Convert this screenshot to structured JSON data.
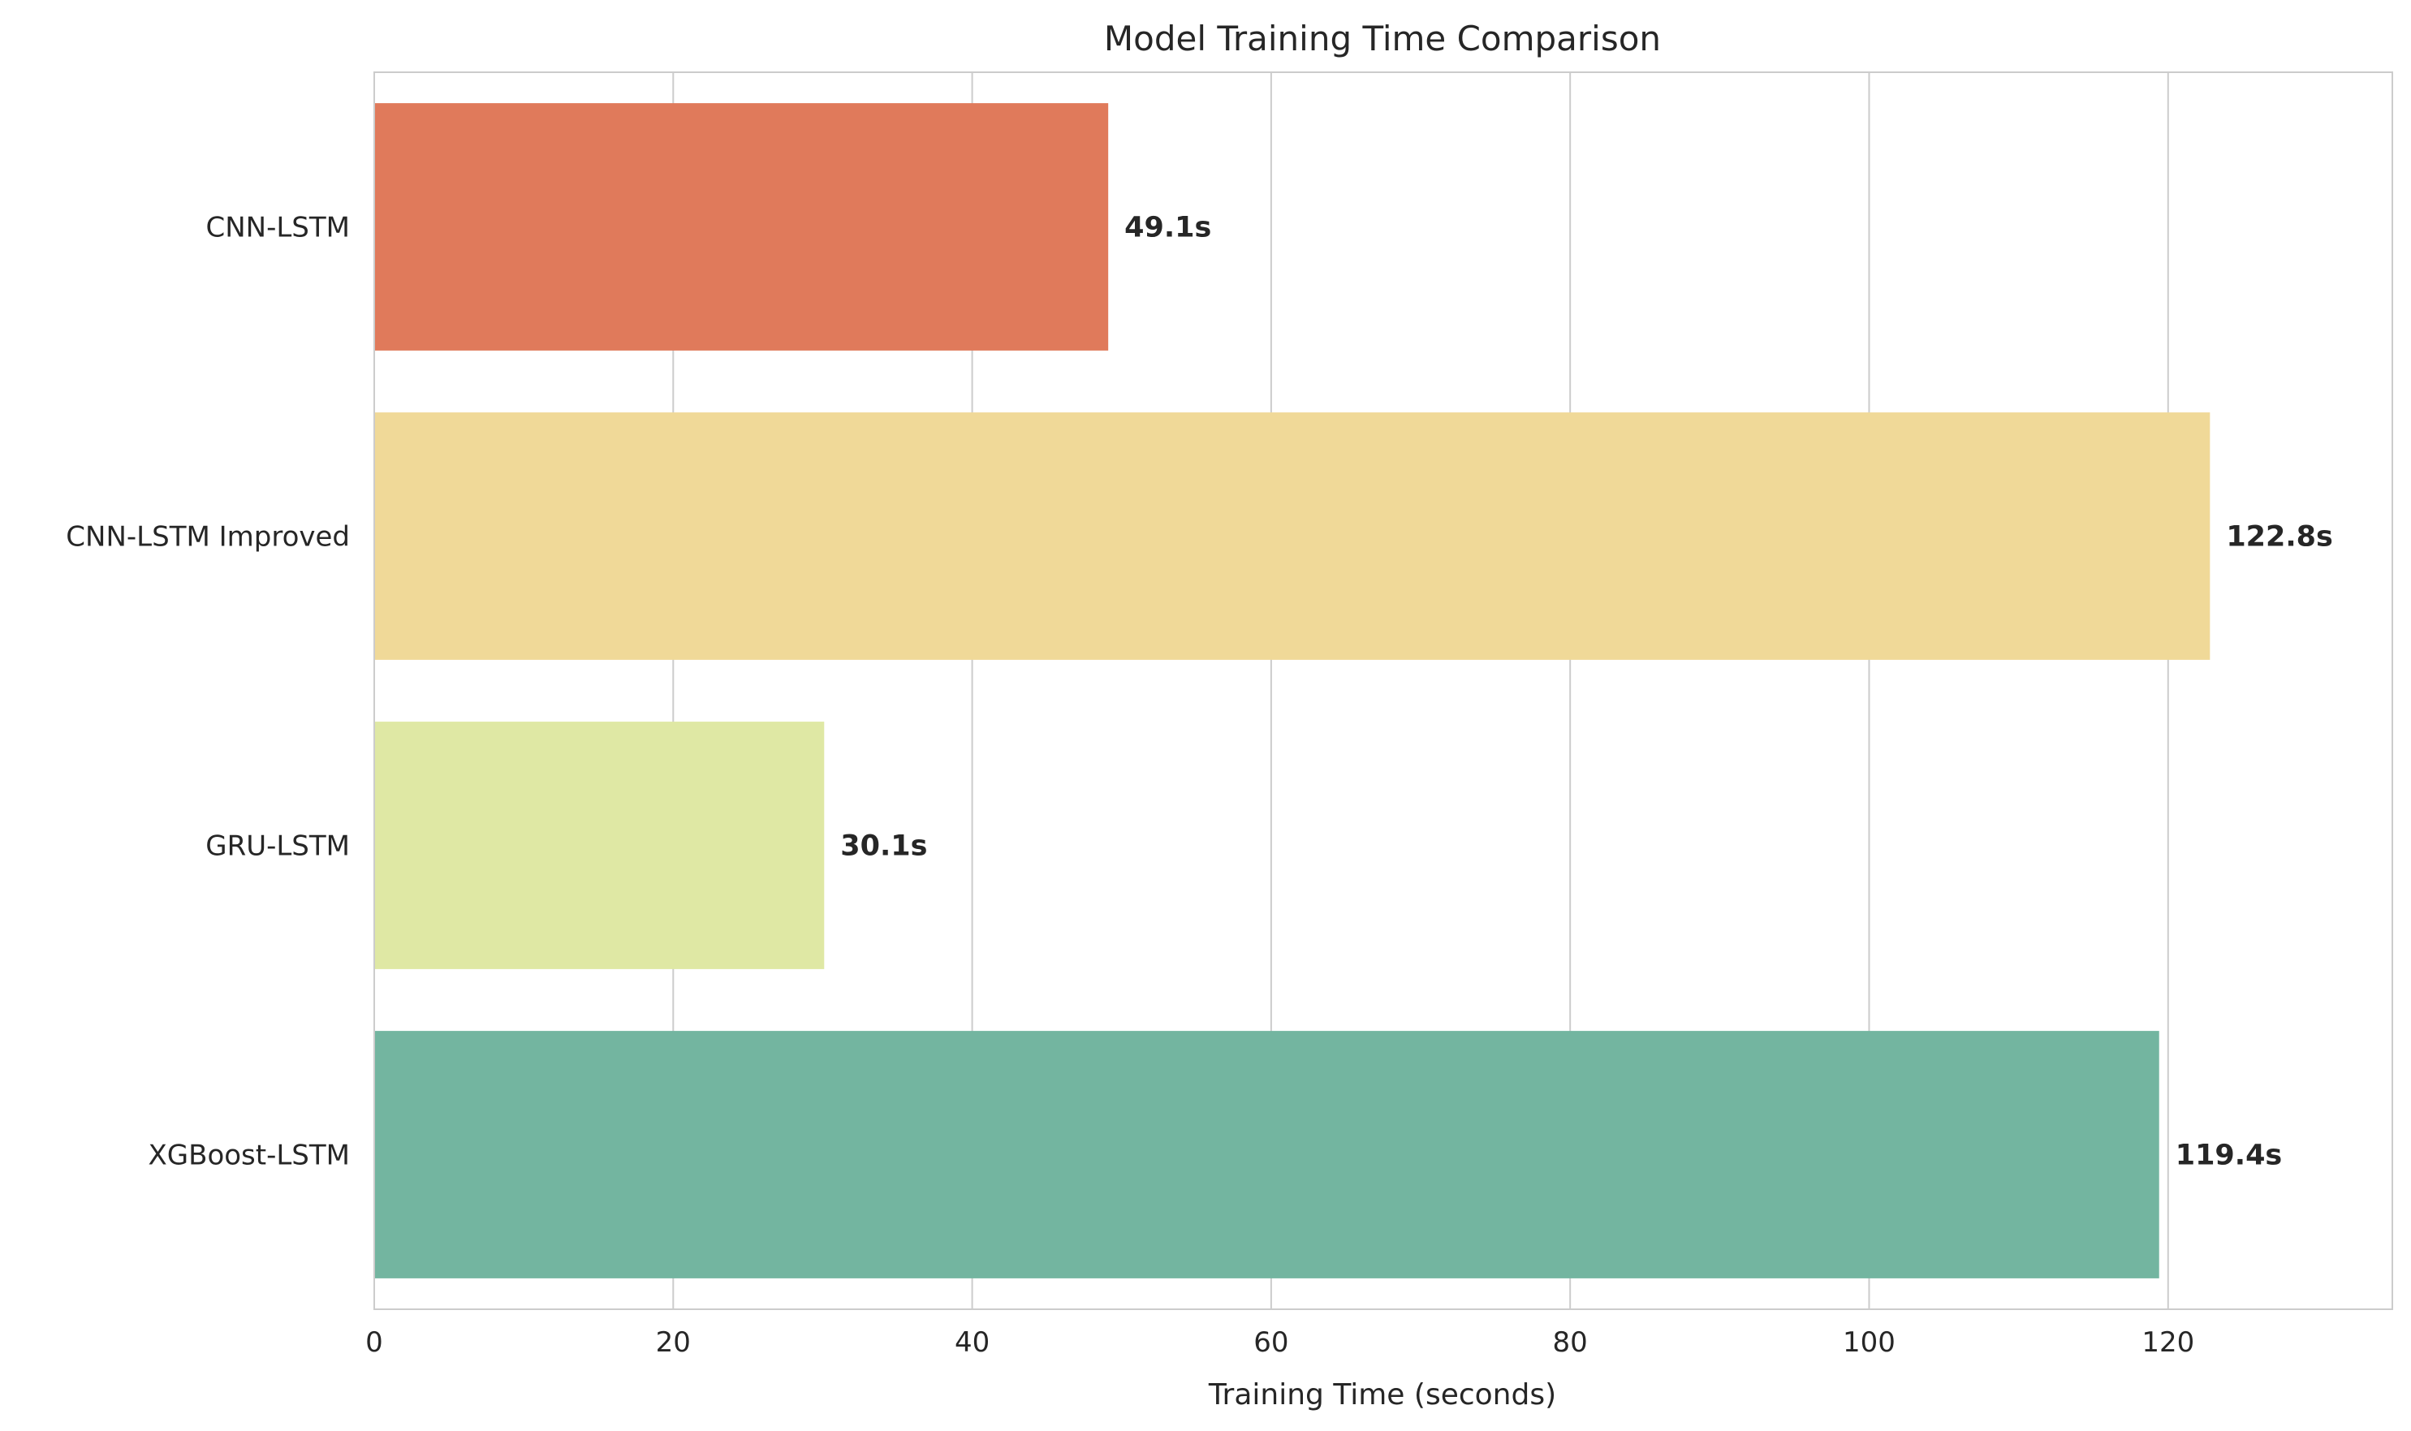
{
  "chart_data": {
    "type": "bar",
    "orientation": "horizontal",
    "title": "Model Training Time Comparison",
    "xlabel": "Training Time (seconds)",
    "ylabel": "",
    "categories": [
      "CNN-LSTM",
      "CNN-LSTM Improved",
      "GRU-LSTM",
      "XGBoost-LSTM"
    ],
    "values": [
      49.1,
      122.8,
      30.1,
      119.4
    ],
    "data_labels": [
      "49.1s",
      "122.8s",
      "30.1s",
      "119.4s"
    ],
    "colors": [
      "#e07a5b",
      "#f0d998",
      "#dfe8a4",
      "#73b5a0"
    ],
    "xlim": [
      0,
      135
    ],
    "xticks": [
      0,
      20,
      40,
      60,
      80,
      100,
      120
    ],
    "xtick_labels": [
      "0",
      "20",
      "40",
      "60",
      "80",
      "100",
      "120"
    ],
    "grid": "vertical",
    "legend": "none"
  },
  "colors": {
    "grid": "#cccccc",
    "frame": "#cccccc",
    "text": "#262626",
    "background": "#ffffff"
  }
}
